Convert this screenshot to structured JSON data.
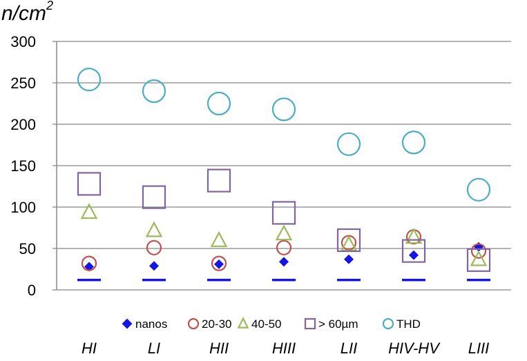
{
  "chart_data": {
    "type": "scatter",
    "title": "",
    "xlabel": "",
    "ylabel": "n/cm",
    "ylabel_superscript": "2",
    "categories": [
      "HI",
      "LI",
      "HII",
      "HIII",
      "LII",
      "HIV-HV",
      "LIII"
    ],
    "ylim": [
      0,
      300
    ],
    "yticks": [
      0,
      50,
      100,
      150,
      200,
      250,
      300
    ],
    "grid": "horizontal",
    "legend_position": "bottom",
    "baseline_marker_value": 12,
    "series": [
      {
        "name": "nanos",
        "marker": "diamond",
        "color": "#1515e6",
        "values": [
          28,
          29,
          31,
          34,
          37,
          42,
          52
        ]
      },
      {
        "name": "20-30",
        "marker": "circle",
        "color": "#c0504d",
        "values": [
          32,
          51,
          32,
          51,
          57,
          64,
          47
        ]
      },
      {
        "name": "40-50",
        "marker": "triangle",
        "color": "#9bbb59",
        "values": [
          94,
          72,
          60,
          68,
          55,
          64,
          37
        ]
      },
      {
        "name": "> 60µm",
        "marker": "square",
        "color": "#8064a2",
        "values": [
          128,
          112,
          132,
          93,
          60,
          47,
          36
        ]
      },
      {
        "name": "THD",
        "marker": "circle",
        "color": "#4bacc6",
        "values": [
          254,
          240,
          225,
          218,
          176,
          178,
          121
        ]
      }
    ]
  }
}
